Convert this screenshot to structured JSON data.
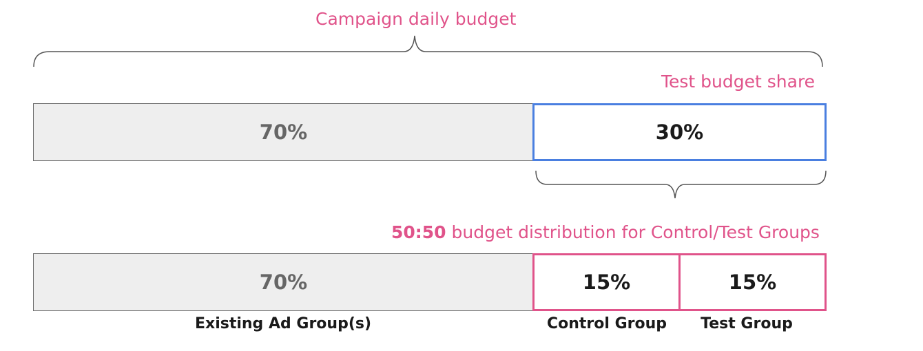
{
  "header": {
    "campaign_budget_label": "Campaign daily budget",
    "test_share_label": "Test budget share"
  },
  "top_bar": {
    "existing_percent": "70%",
    "test_share_percent": "30%"
  },
  "distribution_label": {
    "ratio": "50:50",
    "text": " budget distribution for Control/Test Groups"
  },
  "bottom_bar": {
    "existing_percent": "70%",
    "control_percent": "15%",
    "test_percent": "15%"
  },
  "labels": {
    "existing": "Existing Ad Group(s)",
    "control": "Control Group",
    "test": "Test Group"
  },
  "colors": {
    "accent_pink": "#e0538a",
    "accent_blue": "#4a7fe0",
    "bar_fill": "#eeeeee"
  }
}
